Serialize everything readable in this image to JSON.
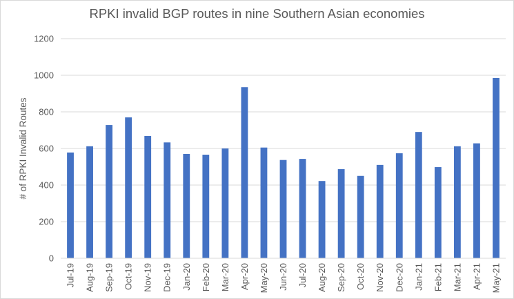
{
  "chart_data": {
    "type": "bar",
    "title": "RPKI invalid BGP routes in nine Southern Asian economies",
    "xlabel": "",
    "ylabel": "# of RPKI Invalid Routes",
    "ylim": [
      0,
      1200
    ],
    "yticks": [
      0,
      200,
      400,
      600,
      800,
      1000,
      1200
    ],
    "grid": true,
    "legend": "none",
    "categories": [
      "Jul-19",
      "Aug-19",
      "Sep-19",
      "Oct-19",
      "Nov-19",
      "Dec-19",
      "Jan-20",
      "Feb-20",
      "Mar-20",
      "Apr-20",
      "May-20",
      "Jun-20",
      "Jul-20",
      "Aug-20",
      "Sep-20",
      "Oct-20",
      "Nov-20",
      "Dec-20",
      "Jan-21",
      "Feb-21",
      "Mar-21",
      "Apr-21",
      "May-21"
    ],
    "values": [
      578,
      612,
      728,
      770,
      668,
      633,
      570,
      566,
      600,
      935,
      605,
      537,
      543,
      422,
      487,
      450,
      510,
      574,
      690,
      498,
      612,
      628,
      985
    ],
    "colors": {
      "bar": "#4472c4",
      "grid": "#d9d9d9",
      "text": "#595959"
    }
  }
}
